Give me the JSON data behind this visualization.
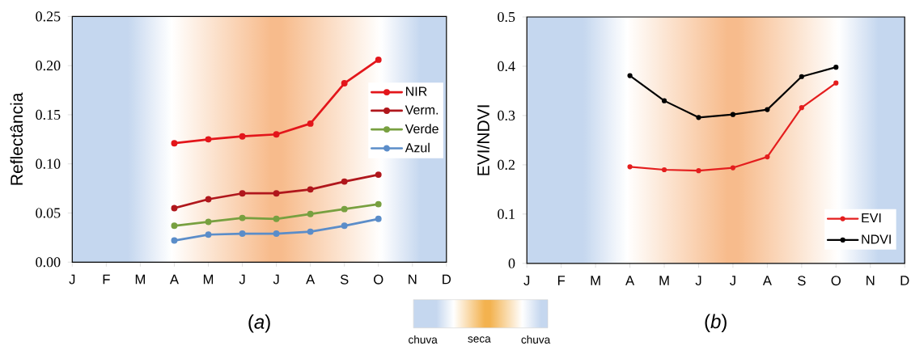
{
  "chart_data": [
    {
      "type": "line",
      "title": "(*a*)",
      "ylabel": "Reflectância",
      "categories": [
        "J",
        "F",
        "M",
        "A",
        "M",
        "J",
        "J",
        "A",
        "S",
        "O",
        "N",
        "D"
      ],
      "series": [
        {
          "name": "NIR",
          "color": "#e3161b",
          "values": [
            null,
            null,
            null,
            0.121,
            0.125,
            0.128,
            0.13,
            0.141,
            0.182,
            0.206,
            null,
            null
          ]
        },
        {
          "name": "Verm.",
          "color": "#b0171c",
          "values": [
            null,
            null,
            null,
            0.055,
            0.064,
            0.07,
            0.07,
            0.074,
            0.082,
            0.089,
            null,
            null
          ]
        },
        {
          "name": "Verde",
          "color": "#78a040",
          "values": [
            null,
            null,
            null,
            0.037,
            0.041,
            0.045,
            0.044,
            0.049,
            0.054,
            0.059,
            null,
            null
          ]
        },
        {
          "name": "Azul",
          "color": "#5b8dc9",
          "values": [
            null,
            null,
            null,
            0.022,
            0.028,
            0.029,
            0.029,
            0.031,
            0.037,
            0.044,
            null,
            null
          ]
        }
      ],
      "ylim": [
        0,
        0.25
      ],
      "yticks": [
        {
          "value": 0,
          "label": "0.00"
        },
        0.05,
        {
          "value": 0.1,
          "label": "0.10"
        },
        0.15,
        {
          "value": 0.2,
          "label": "0.20"
        },
        0.25
      ],
      "legend": "right",
      "marker": "circle",
      "line_style": "solid"
    },
    {
      "type": "line",
      "title": "(*b*)",
      "ylabel": "EVI/NDVI",
      "categories": [
        "J",
        "F",
        "M",
        "A",
        "M",
        "J",
        "J",
        "A",
        "S",
        "O",
        "N",
        "D"
      ],
      "series": [
        {
          "name": "EVI",
          "color": "#e41e1e",
          "values": [
            null,
            null,
            null,
            0.196,
            0.19,
            0.188,
            0.194,
            0.216,
            0.316,
            0.366,
            null,
            null
          ]
        },
        {
          "name": "NDVI",
          "color": "#000000",
          "values": [
            null,
            null,
            null,
            0.381,
            0.33,
            0.296,
            0.302,
            0.312,
            0.379,
            0.398,
            null,
            null
          ]
        }
      ],
      "ylim": [
        0,
        0.5
      ],
      "yticks": [
        0,
        0.1,
        0.2,
        0.3,
        0.4,
        0.5
      ],
      "legend": "bottom right",
      "marker": "circle",
      "line_style": "solid"
    },
    {
      "type": "other",
      "annotations": [
        "chuva",
        "seca",
        "chuva"
      ]
    }
  ]
}
